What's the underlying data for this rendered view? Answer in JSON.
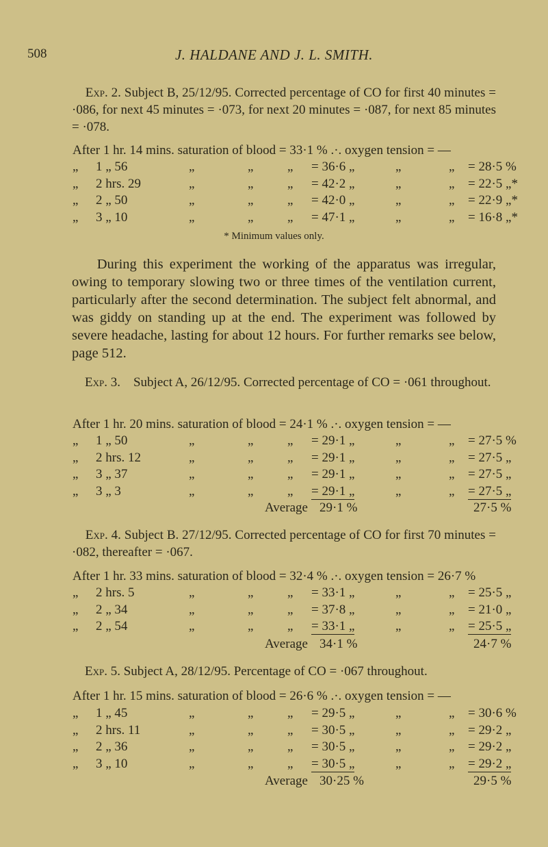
{
  "header": {
    "page_number": "508",
    "running_title": "J. HALDANE AND J. L. SMITH."
  },
  "exp2": {
    "label": "Exp. 2.",
    "intro": "Subject B, 25/12/95. Corrected percentage of CO for first 40 minutes = ·086, for next 45 minutes = ·073, for next 20 minutes = ·087, for next 85 minutes = ·078.",
    "first_row": "After 1 hr. 14 mins. saturation of blood = 33·1 % .·. oxygen tension =  —",
    "rows": [
      [
        "„",
        "1 „ 56",
        "„",
        "„",
        "„",
        "= 36·6 „",
        "„",
        "„",
        "= 28·5 %"
      ],
      [
        "„",
        "2 hrs. 29",
        "„",
        "„",
        "„",
        "= 42·2 „",
        "„",
        "„",
        "= 22·5 „*"
      ],
      [
        "„",
        "2 „ 50",
        "„",
        "„",
        "„",
        "= 42·0 „",
        "„",
        "„",
        "= 22·9 „*"
      ],
      [
        "„",
        "3 „ 10",
        "„",
        "„",
        "„",
        "= 47·1 „",
        "„",
        "„",
        "= 16·8 „*"
      ]
    ],
    "footnote": "* Minimum values only.",
    "discussion": "During this experiment the working of the apparatus was irregular, owing to temporary slowing two or three times of the ventilation current, particularly after the second determination. The subject felt abnormal, and was giddy on standing up at the end. The experiment was followed by severe headache, lasting for about 12 hours. For further remarks see below, page 512."
  },
  "exp3": {
    "label": "Exp. 3.",
    "intro": "Subject A, 26/12/95. Corrected percentage of CO = ·061 throughout.",
    "first_row": "After 1 hr. 20 mins. saturation of blood = 24·1 % .·. oxygen tension =  —",
    "rows": [
      [
        "„",
        "1 „ 50",
        "„",
        "„",
        "„",
        "= 29·1 „",
        "„",
        "„",
        "= 27·5 %"
      ],
      [
        "„",
        "2 hrs. 12",
        "„",
        "„",
        "„",
        "= 29·1 „",
        "„",
        "„",
        "= 27·5 „"
      ],
      [
        "„",
        "3 „ 37",
        "„",
        "„",
        "„",
        "= 29·1 „",
        "„",
        "„",
        "= 27·5 „"
      ],
      [
        "„",
        "3 „ 3",
        "„",
        "„",
        "„",
        "= 29·1 „",
        "„",
        "„",
        "= 27·5 „"
      ]
    ],
    "average_label": "Average",
    "average_saturation": "29·1 %",
    "average_tension": "27·5 %"
  },
  "exp4": {
    "label": "Exp. 4.",
    "intro": "Subject B. 27/12/95. Corrected percentage of CO for first 70 minutes = ·082, thereafter = ·067.",
    "first_row": "After 1 hr. 33 mins. saturation of blood = 32·4 % .·. oxygen tension = 26·7 %",
    "rows": [
      [
        "„",
        "2 hrs. 5",
        "„",
        "„",
        "„",
        "= 33·1 „",
        "„",
        "„",
        "= 25·5 „"
      ],
      [
        "„",
        "2 „ 34",
        "„",
        "„",
        "„",
        "= 37·8 „",
        "„",
        "„",
        "= 21·0 „"
      ],
      [
        "„",
        "2 „ 54",
        "„",
        "„",
        "„",
        "= 33·1 „",
        "„",
        "„",
        "= 25·5 „"
      ]
    ],
    "average_label": "Average",
    "average_saturation": "34·1 %",
    "average_tension": "24·7 %"
  },
  "exp5": {
    "label": "Exp. 5.",
    "intro": "Subject A, 28/12/95. Percentage of CO = ·067 throughout.",
    "first_row": "After 1 hr. 15 mins. saturation of blood = 26·6 % .·. oxygen tension =  —",
    "rows": [
      [
        "„",
        "1 „ 45",
        "„",
        "„",
        "„",
        "= 29·5 „",
        "„",
        "„",
        "= 30·6 %"
      ],
      [
        "„",
        "2 hrs. 11",
        "„",
        "„",
        "„",
        "= 30·5 „",
        "„",
        "„",
        "= 29·2 „"
      ],
      [
        "„",
        "2 „ 36",
        "„",
        "„",
        "„",
        "= 30·5 „",
        "„",
        "„",
        "= 29·2 „"
      ],
      [
        "„",
        "3 „ 10",
        "„",
        "„",
        "„",
        "= 30·5 „",
        "„",
        "„",
        "= 29·2 „"
      ]
    ],
    "average_label": "Average",
    "average_saturation": "30·25 %",
    "average_tension": "29·5 %"
  }
}
